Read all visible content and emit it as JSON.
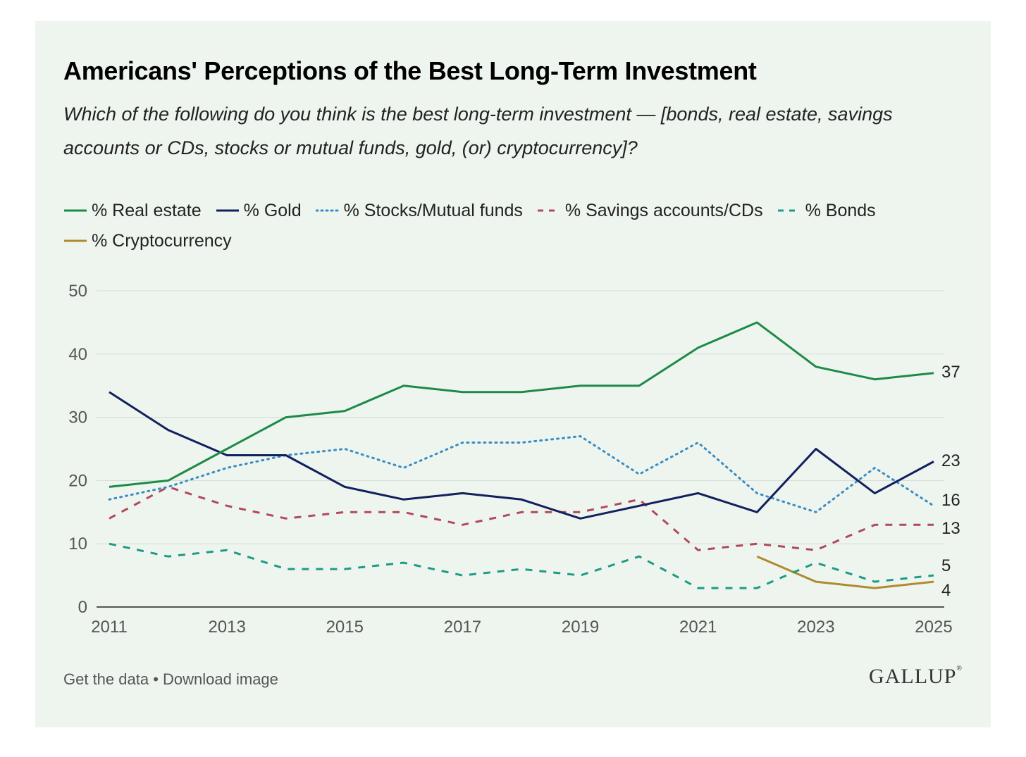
{
  "chart_data": {
    "type": "line",
    "title": "Americans' Perceptions of the Best Long-Term Investment",
    "subtitle": "Which of the following do you think is the best long-term investment — [bonds, real estate, savings accounts or CDs, stocks or mutual funds, gold, (or) cryptocurrency]?",
    "xlabel": "",
    "ylabel": "",
    "x": [
      2011,
      2012,
      2013,
      2014,
      2015,
      2016,
      2017,
      2018,
      2019,
      2020,
      2021,
      2022,
      2023,
      2024,
      2025
    ],
    "x_ticks": [
      "2011",
      "2013",
      "2015",
      "2017",
      "2019",
      "2021",
      "2023",
      "2025"
    ],
    "y_ticks": [
      "0",
      "10",
      "20",
      "30",
      "40",
      "50"
    ],
    "ylim": [
      0,
      50
    ],
    "grid": "horizontal",
    "legend_position": "top",
    "series": [
      {
        "name": "% Real estate",
        "color": "#1e8a47",
        "style": "solid",
        "values": [
          19,
          20,
          25,
          30,
          31,
          35,
          34,
          34,
          35,
          35,
          41,
          45,
          38,
          36,
          37
        ],
        "end_label": "37"
      },
      {
        "name": "% Gold",
        "color": "#12205e",
        "style": "solid",
        "values": [
          34,
          28,
          24,
          24,
          19,
          17,
          18,
          17,
          14,
          16,
          18,
          15,
          25,
          18,
          23
        ],
        "end_label": "23"
      },
      {
        "name": "% Stocks/Mutual funds",
        "color": "#3a8cc4",
        "style": "dotted",
        "values": [
          17,
          19,
          22,
          24,
          25,
          22,
          26,
          26,
          27,
          21,
          26,
          18,
          15,
          22,
          16
        ],
        "end_label": "16"
      },
      {
        "name": "% Savings accounts/CDs",
        "color": "#b04a5a",
        "style": "dashed",
        "values": [
          14,
          19,
          16,
          14,
          15,
          15,
          13,
          15,
          15,
          17,
          9,
          10,
          9,
          13,
          13
        ],
        "end_label": "13"
      },
      {
        "name": "% Bonds",
        "color": "#1f9a86",
        "style": "dashed",
        "values": [
          10,
          8,
          9,
          6,
          6,
          7,
          5,
          6,
          5,
          8,
          3,
          3,
          7,
          4,
          5
        ],
        "end_label": "5"
      },
      {
        "name": "% Cryptocurrency",
        "color": "#b08a2e",
        "style": "solid",
        "values": [
          null,
          null,
          null,
          null,
          null,
          null,
          null,
          null,
          null,
          null,
          null,
          8,
          4,
          3,
          4
        ],
        "end_label": "4"
      }
    ]
  },
  "footer": {
    "get_data": "Get the data",
    "separator": " • ",
    "download": "Download image"
  },
  "logo": {
    "text": "GALLUP",
    "mark": "®"
  }
}
